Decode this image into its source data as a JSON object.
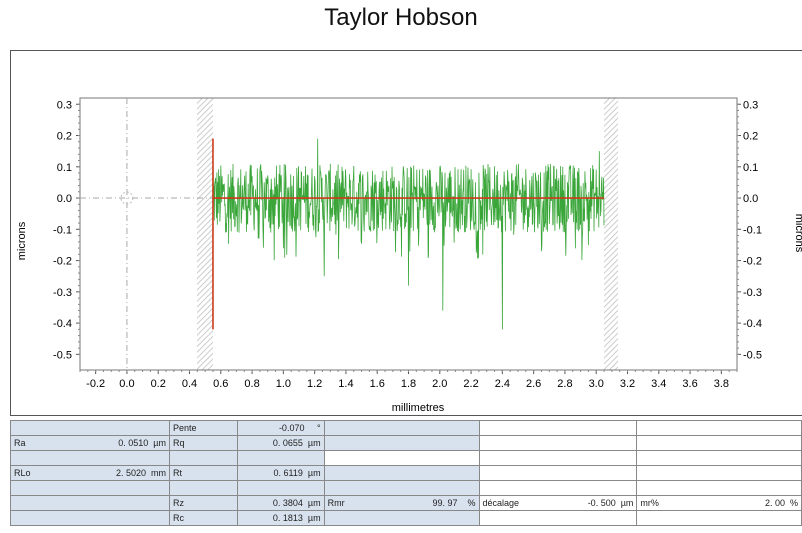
{
  "header": {
    "title": "Taylor Hobson"
  },
  "chart_data": {
    "type": "line",
    "title": "",
    "xlabel": "millimetres",
    "ylabel_left": "microns",
    "ylabel_right": "microns",
    "xlim": [
      -0.3,
      3.9
    ],
    "ylim": [
      -0.55,
      0.32
    ],
    "x_ticks": [
      "-0.2",
      "0.0",
      "0.2",
      "0.4",
      "0.6",
      "0.8",
      "1.0",
      "1.2",
      "1.4",
      "1.6",
      "1.8",
      "2.0",
      "2.2",
      "2.4",
      "2.6",
      "2.8",
      "3.0",
      "3.2",
      "3.4",
      "3.6",
      "3.8"
    ],
    "y_ticks_left": [
      "0.3",
      "0.2",
      "0.1",
      "0.0",
      "-0.1",
      "-0.2",
      "-0.3",
      "-0.4",
      "-0.5"
    ],
    "y_ticks_right": [
      "0.3",
      "0.2",
      "0.1",
      "0.0",
      "-0.1",
      "-0.2",
      "-0.3",
      "-0.4",
      "-0.5"
    ],
    "grid": false,
    "series": [
      {
        "kind": "profile",
        "color": "#3aa63a",
        "x_range": [
          0.55,
          3.05
        ],
        "baseline": 0.0,
        "notable_points": [
          {
            "x": 0.55,
            "y": 0.14
          },
          {
            "x": 1.22,
            "y": 0.19
          },
          {
            "x": 1.26,
            "y": -0.25
          },
          {
            "x": 1.8,
            "y": -0.28
          },
          {
            "x": 2.02,
            "y": -0.36
          },
          {
            "x": 2.4,
            "y": -0.42
          },
          {
            "x": 3.02,
            "y": -0.13
          },
          {
            "x": 3.02,
            "y": 0.15
          }
        ]
      },
      {
        "kind": "mean-line",
        "color": "#cc3a1a",
        "x": [
          0.55,
          3.05
        ],
        "y": [
          0.0,
          0.0
        ]
      },
      {
        "kind": "cursor",
        "color": "#cc3a1a",
        "x": 0.55,
        "y_range": [
          -0.42,
          0.19
        ]
      }
    ]
  },
  "params": {
    "pente_label": "Pente",
    "pente_value": "-0.070",
    "pente_unit": "°",
    "ra_label": "Ra",
    "ra_value": "0. 0510",
    "ra_unit": "µm",
    "rq_label": "Rq",
    "rq_value": "0. 0655",
    "rq_unit": "µm",
    "rlo_label": "RLo",
    "rlo_value": "2. 5020",
    "rlo_unit": "mm",
    "rt_label": "Rt",
    "rt_value": "0. 6119",
    "rt_unit": "µm",
    "rz_label": "Rz",
    "rz_value": "0. 3804",
    "rz_unit": "µm",
    "rmr_label": "Rmr",
    "rmr_value": "99. 97",
    "rmr_unit": "%",
    "decalage_label": "décalage",
    "decalage_value": "-0. 500",
    "decalage_unit": "µm",
    "mrpct_label": "mr%",
    "mrpct_value": "2. 00",
    "mrpct_unit": "%",
    "rc_label": "Rc",
    "rc_value": "0. 1813",
    "rc_unit": "µm"
  },
  "colors": {
    "profile": "#3aa63a",
    "mean_line": "#cc3a1a",
    "table_shade": "#d8e2ee"
  }
}
